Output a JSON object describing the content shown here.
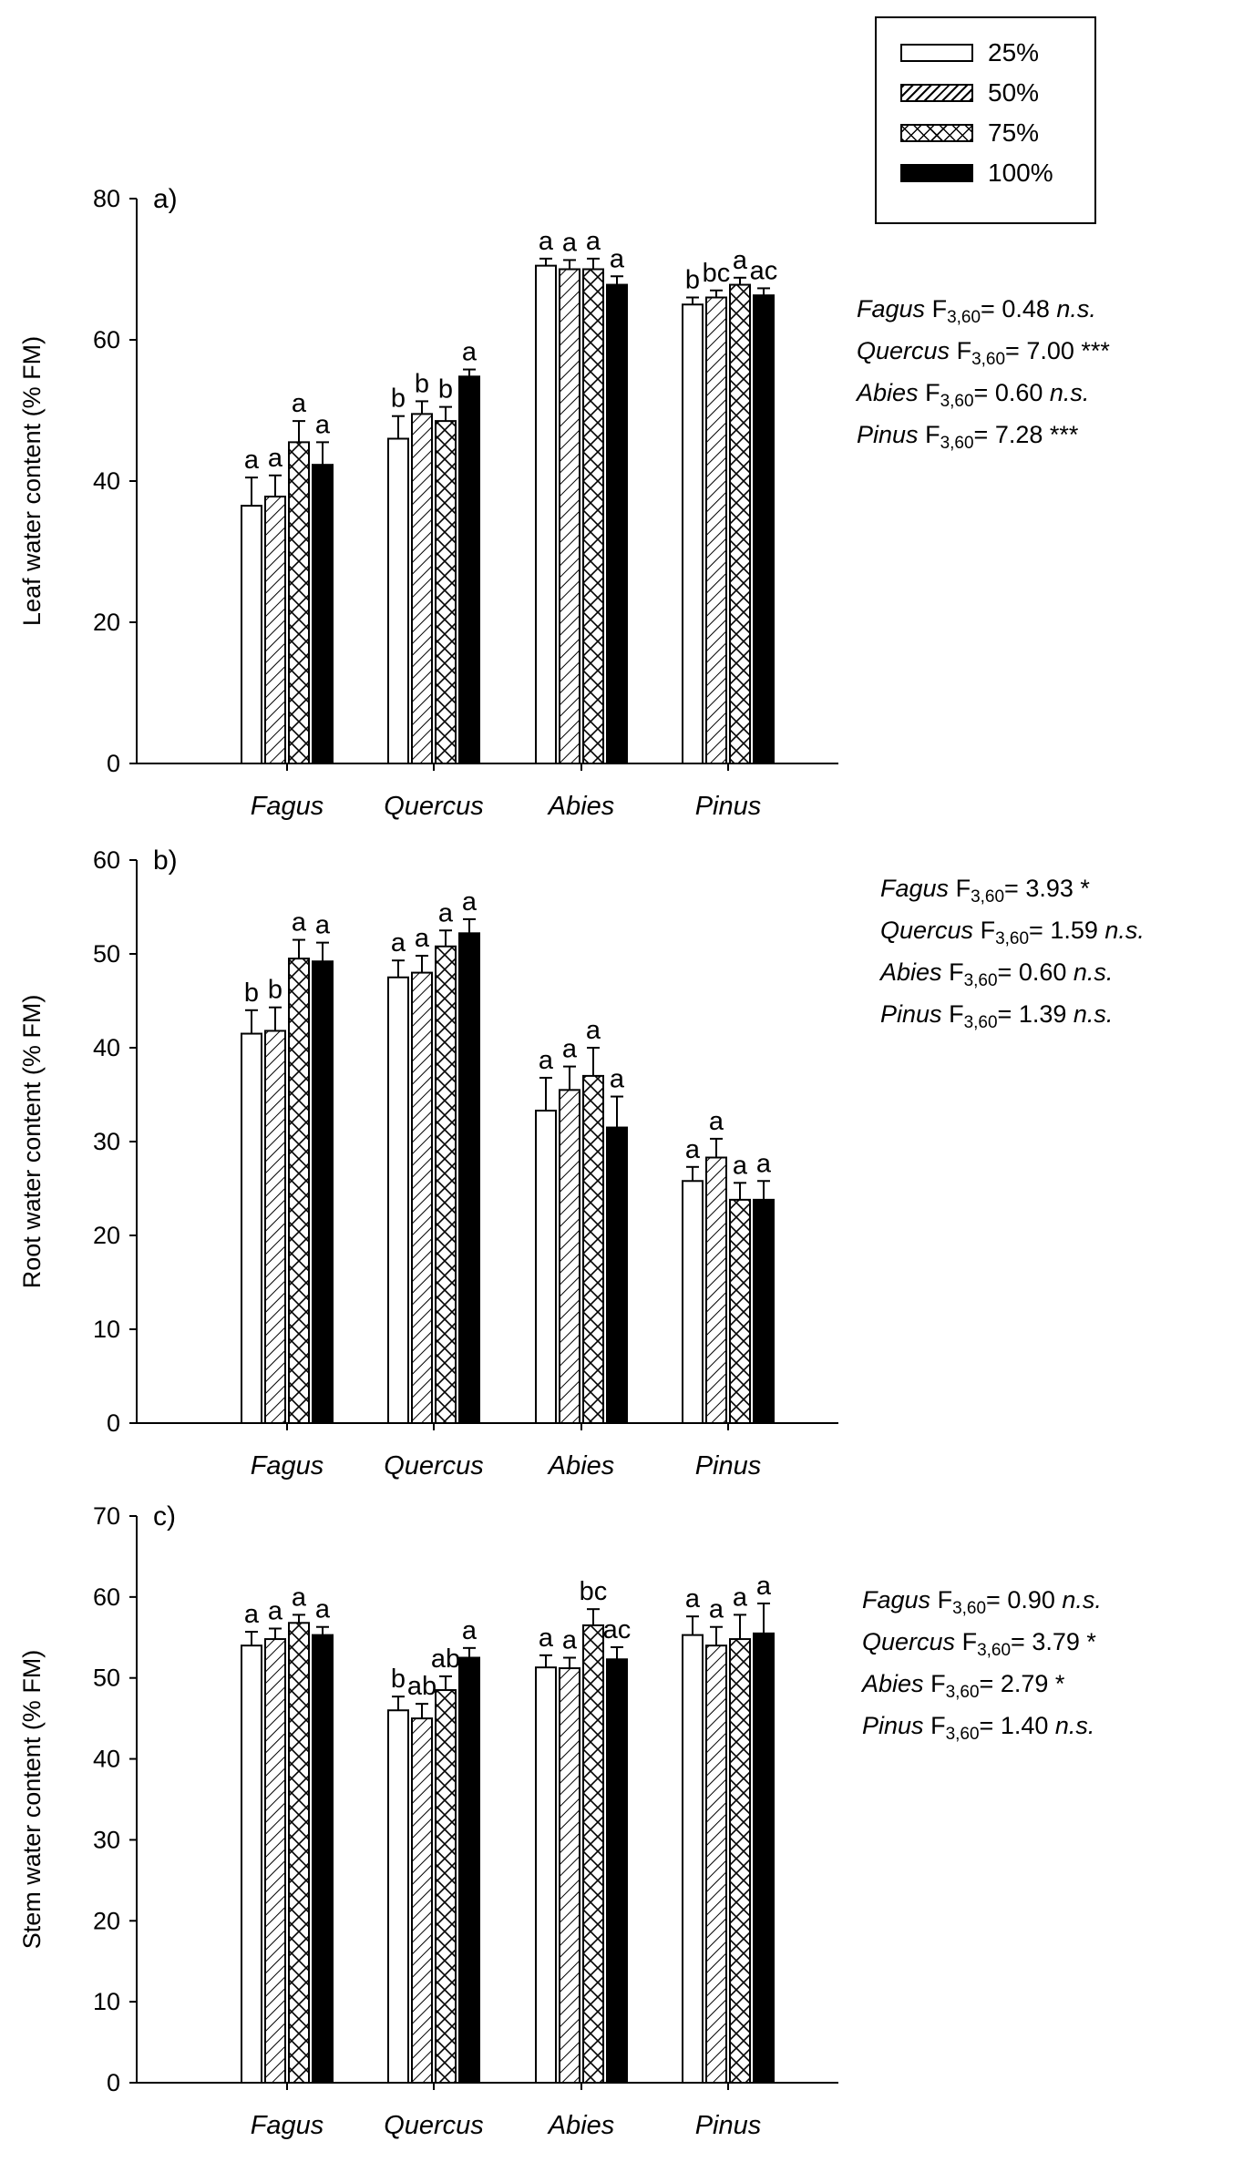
{
  "legend": [
    {
      "label": "25%",
      "pattern": "open"
    },
    {
      "label": "50%",
      "pattern": "hatch"
    },
    {
      "label": "75%",
      "pattern": "cross"
    },
    {
      "label": "100%",
      "pattern": "solid"
    }
  ],
  "chart_data": [
    {
      "type": "bar",
      "panel": "a)",
      "ylabel": "Leaf water content (% FM)",
      "ylim": [
        0,
        80
      ],
      "yticks": [
        0,
        20,
        40,
        60,
        80
      ],
      "categories": [
        "Fagus",
        "Quercus",
        "Abies",
        "Pinus"
      ],
      "series": [
        {
          "name": "25%",
          "values": [
            36.5,
            46.0,
            70.5,
            65.0
          ],
          "errors": [
            4.0,
            3.2,
            1.0,
            1.0
          ],
          "letters": [
            "a",
            "b",
            "a",
            "b"
          ]
        },
        {
          "name": "50%",
          "values": [
            37.8,
            49.5,
            70.0,
            66.0
          ],
          "errors": [
            3.0,
            1.8,
            1.3,
            1.0
          ],
          "letters": [
            "a",
            "b",
            "a",
            "bc"
          ]
        },
        {
          "name": "75%",
          "values": [
            45.5,
            48.5,
            70.0,
            67.8
          ],
          "errors": [
            3.0,
            2.0,
            1.5,
            1.0
          ],
          "letters": [
            "a",
            "b",
            "a",
            "a"
          ]
        },
        {
          "name": "100%",
          "values": [
            42.3,
            54.8,
            67.8,
            66.3
          ],
          "errors": [
            3.2,
            1.0,
            1.2,
            1.0
          ],
          "letters": [
            "a",
            "a",
            "a",
            "ac"
          ]
        }
      ],
      "stats": [
        {
          "genus": "Fagus",
          "f": "F",
          "sub": "3,60",
          "value": "= 0.48",
          "sig": "n.s."
        },
        {
          "genus": "Quercus",
          "f": "F",
          "sub": "3,60",
          "value": "= 7.00",
          "sig": "***"
        },
        {
          "genus": "Abies",
          "f": "F",
          "sub": "3,60",
          "value": "= 0.60",
          "sig": "n.s."
        },
        {
          "genus": "Pinus",
          "f": "F",
          "sub": "3,60",
          "value": "= 7.28",
          "sig": "***"
        }
      ]
    },
    {
      "type": "bar",
      "panel": "b)",
      "ylabel": "Root water content (% FM)",
      "ylim": [
        0,
        60
      ],
      "yticks": [
        0,
        10,
        20,
        30,
        40,
        50,
        60
      ],
      "categories": [
        "Fagus",
        "Quercus",
        "Abies",
        "Pinus"
      ],
      "series": [
        {
          "name": "25%",
          "values": [
            41.5,
            47.5,
            33.3,
            25.8
          ],
          "errors": [
            2.5,
            1.8,
            3.5,
            1.5
          ],
          "letters": [
            "b",
            "a",
            "a",
            "a"
          ]
        },
        {
          "name": "50%",
          "values": [
            41.8,
            48.0,
            35.5,
            28.3
          ],
          "errors": [
            2.5,
            1.8,
            2.5,
            2.0
          ],
          "letters": [
            "b",
            "a",
            "a",
            "a"
          ]
        },
        {
          "name": "75%",
          "values": [
            49.5,
            50.8,
            37.0,
            23.8
          ],
          "errors": [
            2.0,
            1.7,
            3.0,
            1.8
          ],
          "letters": [
            "a",
            "a",
            "a",
            "a"
          ]
        },
        {
          "name": "100%",
          "values": [
            49.2,
            52.2,
            31.5,
            23.8
          ],
          "errors": [
            2.0,
            1.5,
            3.3,
            2.0
          ],
          "letters": [
            "a",
            "a",
            "a",
            "a"
          ]
        }
      ],
      "stats": [
        {
          "genus": "Fagus",
          "f": "F",
          "sub": "3,60",
          "value": "= 3.93",
          "sig": "*"
        },
        {
          "genus": "Quercus",
          "f": "F",
          "sub": "3,60",
          "value": "= 1.59",
          "sig": "n.s."
        },
        {
          "genus": "Abies",
          "f": "F",
          "sub": "3,60",
          "value": "= 0.60",
          "sig": "n.s."
        },
        {
          "genus": "Pinus",
          "f": "F",
          "sub": "3,60",
          "value": "= 1.39",
          "sig": "n.s."
        }
      ]
    },
    {
      "type": "bar",
      "panel": "c)",
      "ylabel": "Stem water content (% FM)",
      "ylim": [
        0,
        70
      ],
      "yticks": [
        0,
        10,
        20,
        30,
        40,
        50,
        60,
        70
      ],
      "categories": [
        "Fagus",
        "Quercus",
        "Abies",
        "Pinus"
      ],
      "series": [
        {
          "name": "25%",
          "values": [
            54.0,
            46.0,
            51.3,
            55.3
          ],
          "errors": [
            1.7,
            1.7,
            1.5,
            2.3
          ],
          "letters": [
            "a",
            "b",
            "a",
            "a"
          ]
        },
        {
          "name": "50%",
          "values": [
            54.8,
            45.0,
            51.2,
            54.0
          ],
          "errors": [
            1.3,
            1.8,
            1.3,
            2.3
          ],
          "letters": [
            "a",
            "ab",
            "a",
            "a"
          ]
        },
        {
          "name": "75%",
          "values": [
            56.8,
            48.5,
            56.5,
            54.8
          ],
          "errors": [
            1.0,
            1.7,
            2.0,
            3.0
          ],
          "letters": [
            "a",
            "ab",
            "bc",
            "a"
          ]
        },
        {
          "name": "100%",
          "values": [
            55.3,
            52.5,
            52.3,
            55.5
          ],
          "errors": [
            1.0,
            1.2,
            1.5,
            3.7
          ],
          "letters": [
            "a",
            "a",
            "ac",
            "a"
          ]
        }
      ],
      "stats": [
        {
          "genus": "Fagus",
          "f": "F",
          "sub": "3,60",
          "value": "= 0.90",
          "sig": "n.s."
        },
        {
          "genus": "Quercus",
          "f": "F",
          "sub": "3,60",
          "value": "= 3.79",
          "sig": "*"
        },
        {
          "genus": "Abies",
          "f": "F",
          "sub": "3,60",
          "value": "= 2.79",
          "sig": "*"
        },
        {
          "genus": "Pinus",
          "f": "F",
          "sub": "3,60",
          "value": "= 1.40",
          "sig": "n.s."
        }
      ]
    }
  ]
}
